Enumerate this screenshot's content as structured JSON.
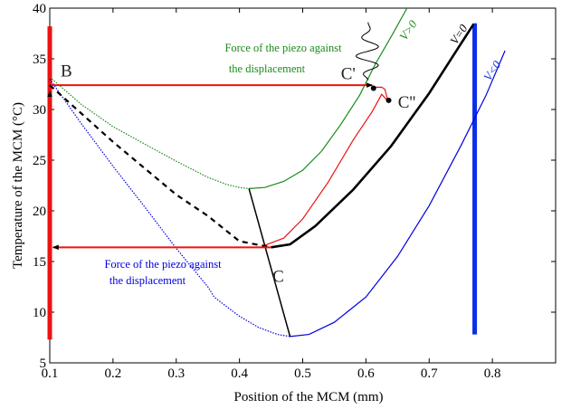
{
  "chart_data": {
    "type": "line",
    "xlabel": "Position of the MCM (mm)",
    "ylabel": "Temperature of the MCM (°C)",
    "xlim": [
      0.1,
      0.9
    ],
    "ylim": [
      5,
      40
    ],
    "xticks": [
      "0.1",
      "0.2",
      "0.3",
      "0.4",
      "0.5",
      "0.6",
      "0.7",
      "0.8"
    ],
    "yticks": [
      "5",
      "10",
      "15",
      "20",
      "25",
      "30",
      "35",
      "40"
    ],
    "grid": false,
    "colors": {
      "green": "#1a8a1a",
      "blue": "#0000e0",
      "black": "#000000",
      "red": "#ee1111",
      "stop_blue": "#0a2ee8"
    },
    "series": [
      {
        "label": "V>0",
        "style": "green",
        "dotted": [
          [
            0.1,
            33.2
          ],
          [
            0.15,
            30.5
          ],
          [
            0.2,
            28.3
          ],
          [
            0.25,
            26.6
          ],
          [
            0.3,
            24.9
          ],
          [
            0.35,
            23.3
          ],
          [
            0.38,
            22.6
          ],
          [
            0.4,
            22.3
          ],
          [
            0.415,
            22.2
          ]
        ],
        "solid": [
          [
            0.415,
            22.2
          ],
          [
            0.44,
            22.3
          ],
          [
            0.47,
            22.9
          ],
          [
            0.5,
            24.0
          ],
          [
            0.53,
            25.9
          ],
          [
            0.56,
            28.5
          ],
          [
            0.59,
            31.4
          ],
          [
            0.615,
            34.5
          ],
          [
            0.64,
            37.2
          ],
          [
            0.665,
            40.0
          ]
        ]
      },
      {
        "label": "V<0",
        "style": "blue",
        "dotted": [
          [
            0.1,
            33.0
          ],
          [
            0.15,
            28.6
          ],
          [
            0.2,
            24.4
          ],
          [
            0.25,
            20.4
          ],
          [
            0.3,
            16.3
          ],
          [
            0.35,
            12.5
          ],
          [
            0.36,
            11.5
          ],
          [
            0.37,
            11.0
          ],
          [
            0.4,
            9.6
          ],
          [
            0.43,
            8.5
          ],
          [
            0.46,
            7.8
          ],
          [
            0.48,
            7.6
          ]
        ],
        "solid": [
          [
            0.48,
            7.6
          ],
          [
            0.51,
            7.8
          ],
          [
            0.55,
            9.0
          ],
          [
            0.6,
            11.5
          ],
          [
            0.65,
            15.5
          ],
          [
            0.7,
            20.5
          ],
          [
            0.75,
            26.4
          ],
          [
            0.79,
            31.4
          ],
          [
            0.82,
            35.8
          ]
        ]
      },
      {
        "label": "V=0",
        "style": "black",
        "dashed": [
          [
            0.1,
            32.4
          ],
          [
            0.2,
            26.8
          ],
          [
            0.3,
            21.6
          ],
          [
            0.35,
            19.5
          ],
          [
            0.4,
            17.0
          ],
          [
            0.45,
            16.4
          ]
        ],
        "solid": [
          [
            0.45,
            16.4
          ],
          [
            0.48,
            16.7
          ],
          [
            0.52,
            18.5
          ],
          [
            0.58,
            22.1
          ],
          [
            0.64,
            26.4
          ],
          [
            0.7,
            31.6
          ],
          [
            0.74,
            35.5
          ],
          [
            0.77,
            38.4
          ]
        ]
      },
      {
        "label": "",
        "style": "red",
        "solid": [
          [
            0.44,
            16.6
          ],
          [
            0.47,
            17.3
          ],
          [
            0.5,
            19.2
          ],
          [
            0.54,
            22.8
          ],
          [
            0.58,
            27.0
          ],
          [
            0.61,
            29.8
          ],
          [
            0.625,
            31.5
          ],
          [
            0.635,
            30.8
          ],
          [
            0.63,
            32.0
          ],
          [
            0.625,
            32.2
          ],
          [
            0.612,
            32.2
          ]
        ]
      }
    ],
    "cycle_arrows": [
      {
        "from": [
          0.102,
          32.4
        ],
        "to": [
          0.61,
          32.4
        ]
      },
      {
        "from": [
          0.45,
          16.4
        ],
        "to": [
          0.105,
          16.4
        ]
      },
      {
        "from": [
          0.1,
          16.6
        ],
        "to": [
          0.1,
          31.8
        ]
      }
    ],
    "transition_line": [
      [
        0.415,
        22.2
      ],
      [
        0.48,
        7.6
      ]
    ],
    "stops": [
      {
        "x": 0.1,
        "y_from": 7.3,
        "y_to": 38.2,
        "color": "red"
      },
      {
        "x": 0.772,
        "y_from": 7.8,
        "y_to": 38.5,
        "color": "stop_blue"
      }
    ],
    "points": [
      {
        "name": "B",
        "text": "B",
        "x": 0.1,
        "y": 32.8
      },
      {
        "name": "C-prime",
        "text": "C'",
        "x": 0.612,
        "y": 32.1
      },
      {
        "name": "C-double-prime",
        "text": "C''",
        "x": 0.636,
        "y": 30.9
      },
      {
        "name": "C",
        "text": "C",
        "x": 0.445,
        "y": 13.0
      }
    ],
    "annotations": {
      "green_line1": "Force of the piezo against",
      "green_line2": "the displacement",
      "blue_line1": "Force of the piezo against",
      "blue_line2": "the displacement"
    }
  }
}
